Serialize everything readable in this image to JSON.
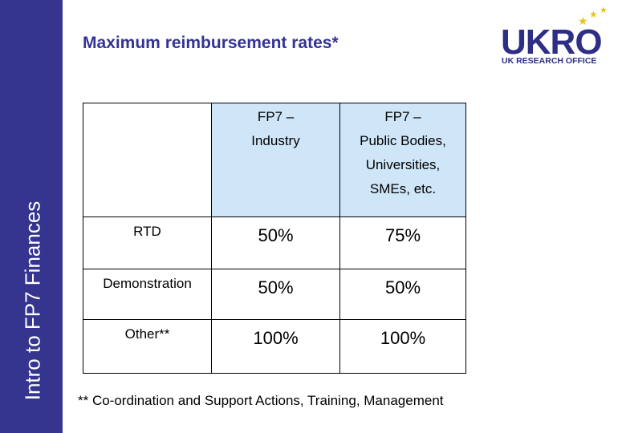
{
  "sidebar": {
    "text": "Intro to FP7 Finances"
  },
  "title": "Maximum reimbursement rates*",
  "logo": {
    "word": "UKRO",
    "subtitle": "UK RESEARCH OFFICE",
    "accent_color": "#e8c21a",
    "brand_color": "#2e2e86"
  },
  "table": {
    "headers": [
      {
        "lines": [
          "FP7 –",
          "Industry"
        ]
      },
      {
        "lines": [
          "FP7 –",
          "Public Bodies,",
          "Universities,",
          "SMEs, etc."
        ]
      }
    ],
    "rows": [
      {
        "label": "RTD",
        "values": [
          "50%",
          "75%"
        ]
      },
      {
        "label": "Demonstration",
        "values": [
          "50%",
          "50%"
        ]
      },
      {
        "label": "Other**",
        "values": [
          "100%",
          "100%"
        ]
      }
    ]
  },
  "footnote": "** Co-ordination and Support Actions, Training, Management",
  "colors": {
    "sidebar": "#35358f",
    "header_fill": "#cfe6f8",
    "title": "#343494"
  }
}
